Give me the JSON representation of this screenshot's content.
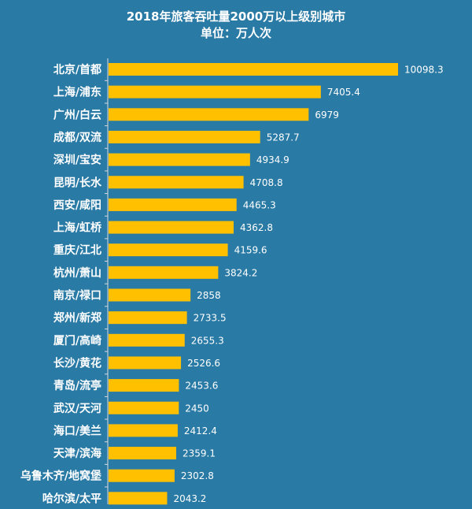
{
  "chart_data": {
    "type": "bar",
    "orientation": "horizontal",
    "title": "2018年旅客吞吐量2000万以上级别城市",
    "subtitle": "单位：万人次",
    "categories": [
      "北京/首都",
      "上海/浦东",
      "广州/白云",
      "成都/双流",
      "深圳/宝安",
      "昆明/长水",
      "西安/咸阳",
      "上海/虹桥",
      "重庆/江北",
      "杭州/萧山",
      "南京/禄口",
      "郑州/新郑",
      "厦门/高崎",
      "长沙/黄花",
      "青岛/流亭",
      "武汉/天河",
      "海口/美兰",
      "天津/滨海",
      "乌鲁木齐/地窝堡",
      "哈尔滨/太平"
    ],
    "values": [
      10098.3,
      7405.4,
      6979,
      5287.7,
      4934.9,
      4708.8,
      4465.3,
      4362.8,
      4159.6,
      3824.2,
      2858,
      2733.5,
      2655.3,
      2526.6,
      2453.6,
      2450,
      2412.4,
      2359.1,
      2302.8,
      2043.2
    ],
    "value_labels": [
      "10098.3",
      "7405.4",
      "6979",
      "5287.7",
      "4934.9",
      "4708.8",
      "4465.3",
      "4362.8",
      "4159.6",
      "3824.2",
      "2858",
      "2733.5",
      "2655.3",
      "2526.6",
      "2453.6",
      "2450",
      "2412.4",
      "2359.1",
      "2302.8",
      "2043.2"
    ],
    "xlim": [
      0,
      10098.3
    ],
    "grid": false,
    "legend": "none",
    "bar_color": "#ffc000",
    "background_color": "#2a7aa6",
    "axis_color": "#d9d9d9"
  }
}
